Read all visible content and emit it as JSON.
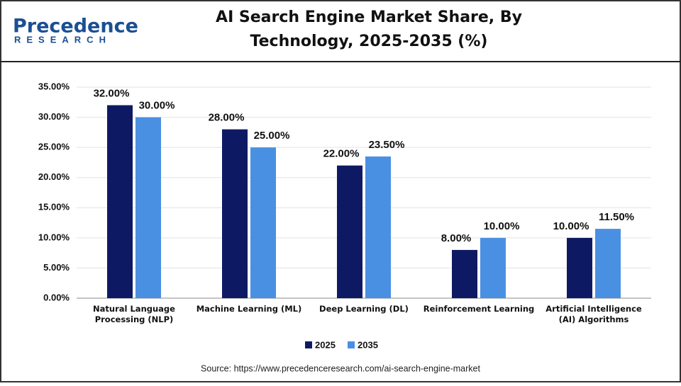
{
  "logo": {
    "name": "Precedence",
    "tagline": "RESEARCH"
  },
  "chart_data": {
    "type": "bar",
    "title": "AI Search Engine Market Share, By Technology, 2025-2035 (%)",
    "categories": [
      "Natural Language Processing (NLP)",
      "Machine Learning (ML)",
      "Deep Learning (DL)",
      "Reinforcement Learning",
      "Artificial Intelligence (AI) Algorithms"
    ],
    "series": [
      {
        "name": "2025",
        "color": "#0d1a63",
        "values": [
          32,
          28,
          22,
          8,
          10
        ],
        "value_labels": [
          "32.00%",
          "28.00%",
          "22.00%",
          "8.00%",
          "10.00%"
        ]
      },
      {
        "name": "2035",
        "color": "#4a90e2",
        "values": [
          30,
          25,
          23.5,
          10,
          11.5
        ],
        "value_labels": [
          "30.00%",
          "25.00%",
          "23.50%",
          "10.00%",
          "11.50%"
        ]
      }
    ],
    "ylim": [
      0,
      35
    ],
    "yticks": [
      {
        "value": 0,
        "label": "0.00%"
      },
      {
        "value": 5,
        "label": "5.00%"
      },
      {
        "value": 10,
        "label": "10.00%"
      },
      {
        "value": 15,
        "label": "15.00%"
      },
      {
        "value": 20,
        "label": "20.00%"
      },
      {
        "value": 25,
        "label": "25.00%"
      },
      {
        "value": 30,
        "label": "30.00%"
      },
      {
        "value": 35,
        "label": "35.00%"
      }
    ],
    "grid": true,
    "legend": "bottom",
    "source": "Source: https://www.precedenceresearch.com/ai-search-engine-market"
  }
}
